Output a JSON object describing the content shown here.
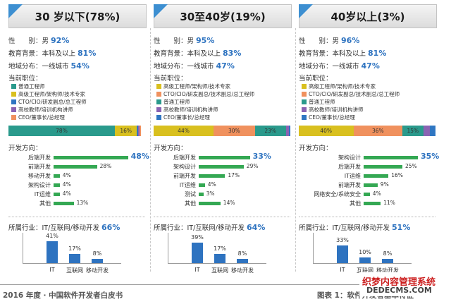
{
  "colors": {
    "accent": "#2e73c0",
    "hbar": "#34a853",
    "roles": [
      "#2a9a8c",
      "#d9c01f",
      "#2f76c2",
      "#8a63b3",
      "#f0915e"
    ]
  },
  "panels": [
    {
      "title": "30 岁以下(78%)",
      "gender_label": "性　　别：男",
      "gender_val": "92%",
      "edu_label": "教育背景：本科及以上",
      "edu_val": "81%",
      "region_label": "地域分布：一线城市",
      "region_val": "54%",
      "roles_title": "当前职位：",
      "roles": [
        "普通工程师",
        "高级工程师/架构师/技术专家",
        "CTO/CIO/研发副总/总工程师",
        "高校教师/培训机构讲师",
        "CEO/董事长/总经理"
      ],
      "stack": {
        "role_index": [
          0,
          1,
          2,
          3,
          4
        ],
        "values": [
          78,
          16,
          1,
          1,
          1
        ],
        "labels": [
          "78%",
          "16%",
          "",
          "",
          ""
        ]
      },
      "dir_title": "开发方向：",
      "directions": [
        {
          "name": "后端开发",
          "value": 48,
          "label": "48%",
          "top": true
        },
        {
          "name": "前端开发",
          "value": 28,
          "label": "28%"
        },
        {
          "name": "移动开发",
          "value": 4,
          "label": "4%"
        },
        {
          "name": "架构设计",
          "value": 4,
          "label": "4%"
        },
        {
          "name": "IT运维",
          "value": 4,
          "label": "4%"
        },
        {
          "name": "其他",
          "value": 13,
          "label": "13%"
        }
      ],
      "ind_label": "所属行业：IT/互联网/移动开发",
      "ind_val": "66%",
      "industries": [
        {
          "name": "IT",
          "value": 41,
          "label": "41%"
        },
        {
          "name": "互联网",
          "value": 17,
          "label": "17%"
        },
        {
          "name": "移动开发",
          "value": 8,
          "label": "8%"
        }
      ]
    },
    {
      "title": "30至40岁(19%)",
      "gender_label": "性　　别：男",
      "gender_val": "95%",
      "edu_label": "教育背景：本科及以上",
      "edu_val": "83%",
      "region_label": "地域分布：一线城市",
      "region_val": "47%",
      "roles_title": "当前职位：",
      "roles": [
        "高级工程师/架构师/技术专家",
        "CTO/CIO/研发副总/技术副总/总工程师",
        "普通工程师",
        "高校教师/培训机构讲师",
        "CEO/董事长/总经理"
      ],
      "stack": {
        "role_index": [
          1,
          4,
          0,
          3,
          2
        ],
        "values": [
          44,
          30,
          23,
          2,
          1
        ],
        "labels": [
          "44%",
          "30%",
          "23%",
          "",
          ""
        ]
      },
      "dir_title": "开发方向：",
      "directions": [
        {
          "name": "后端开发",
          "value": 33,
          "label": "33%",
          "top": true
        },
        {
          "name": "架构设计",
          "value": 29,
          "label": "29%"
        },
        {
          "name": "前端开发",
          "value": 17,
          "label": "17%"
        },
        {
          "name": "IT运维",
          "value": 4,
          "label": "4%"
        },
        {
          "name": "测试",
          "value": 3,
          "label": "3%"
        },
        {
          "name": "其他",
          "value": 14,
          "label": "14%"
        }
      ],
      "ind_label": "所属行业：IT/互联网/移动开发",
      "ind_val": "64%",
      "industries": [
        {
          "name": "IT",
          "value": 39,
          "label": "39%"
        },
        {
          "name": "互联网",
          "value": 17,
          "label": "17%"
        },
        {
          "name": "移动开发",
          "value": 8,
          "label": "8%"
        }
      ]
    },
    {
      "title": "40岁以上(3%)",
      "gender_label": "性　　别：男",
      "gender_val": "96%",
      "edu_label": "教育背景：本科及以上",
      "edu_val": "81%",
      "region_label": "地域分布：一线城市",
      "region_val": "47%",
      "roles_title": "当前职位：",
      "roles": [
        "高级工程师/架构师/技术专家",
        "CTO/CIO/研发副总/技术副总/总工程师",
        "普通工程师",
        "高校教师/培训机构讲师",
        "CEO/董事长/总经理"
      ],
      "stack": {
        "role_index": [
          1,
          4,
          0,
          3,
          2
        ],
        "values": [
          40,
          36,
          15,
          5,
          4
        ],
        "labels": [
          "40%",
          "36%",
          "15%",
          "",
          ""
        ]
      },
      "dir_title": "开发方向：",
      "directions": [
        {
          "name": "架构设计",
          "value": 35,
          "label": "35%",
          "top": true
        },
        {
          "name": "后端开发",
          "value": 25,
          "label": "25%"
        },
        {
          "name": "IT运维",
          "value": 16,
          "label": "16%"
        },
        {
          "name": "前端开发",
          "value": 9,
          "label": "9%"
        },
        {
          "name": "网络安全/系统安全",
          "value": 4,
          "label": "4%"
        },
        {
          "name": "其他",
          "value": 11,
          "label": "11%"
        }
      ],
      "ind_label": "所属行业：IT/互联网/移动开发",
      "ind_val": "51%",
      "industries": [
        {
          "name": "IT",
          "value": 33,
          "label": "33%"
        },
        {
          "name": "互联网",
          "value": 10,
          "label": "10%"
        },
        {
          "name": "移动开发",
          "value": 8,
          "label": "8%"
        }
      ]
    }
  ],
  "footer": {
    "left": "2016 年度 · 中国软件开发者白皮书",
    "right": "图表 1：软件开发者基本特征"
  },
  "watermark": {
    "line1": "织梦内容管理系统",
    "line2": "DEDECMS.COM"
  }
}
